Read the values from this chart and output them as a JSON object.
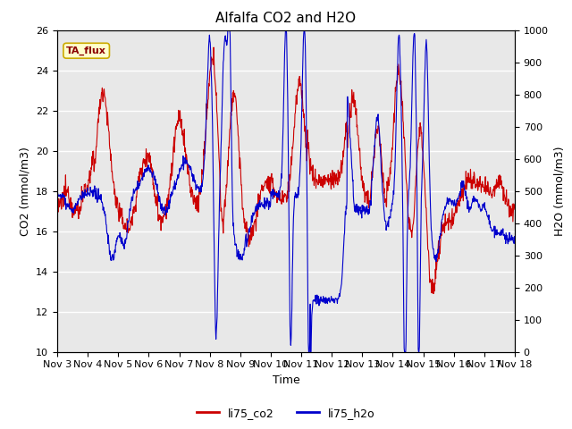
{
  "title": "Alfalfa CO2 and H2O",
  "xlabel": "Time",
  "ylabel_left": "CO2 (mmol/m3)",
  "ylabel_right": "H2O (mmol/m3)",
  "annotation": "TA_flux",
  "ylim_left": [
    10,
    26
  ],
  "ylim_right": [
    0,
    1000
  ],
  "yticks_left": [
    10,
    12,
    14,
    16,
    18,
    20,
    22,
    24,
    26
  ],
  "yticks_right": [
    0,
    100,
    200,
    300,
    400,
    500,
    600,
    700,
    800,
    900,
    1000
  ],
  "xtick_labels": [
    "Nov 3",
    "Nov 4",
    "Nov 5",
    "Nov 6",
    "Nov 7",
    "Nov 8",
    "Nov 9",
    "Nov 10",
    "Nov 11",
    "Nov 12",
    "Nov 13",
    "Nov 14",
    "Nov 15",
    "Nov 16",
    "Nov 17",
    "Nov 18"
  ],
  "co2_color": "#cc0000",
  "h2o_color": "#0000cc",
  "legend_labels": [
    "li75_co2",
    "li75_h2o"
  ],
  "fig_facecolor": "#ffffff",
  "plot_facecolor": "#e8e8e8",
  "grid_color": "#ffffff",
  "annotation_facecolor": "#ffffcc",
  "annotation_edgecolor": "#ccaa00",
  "annotation_textcolor": "#8b0000"
}
